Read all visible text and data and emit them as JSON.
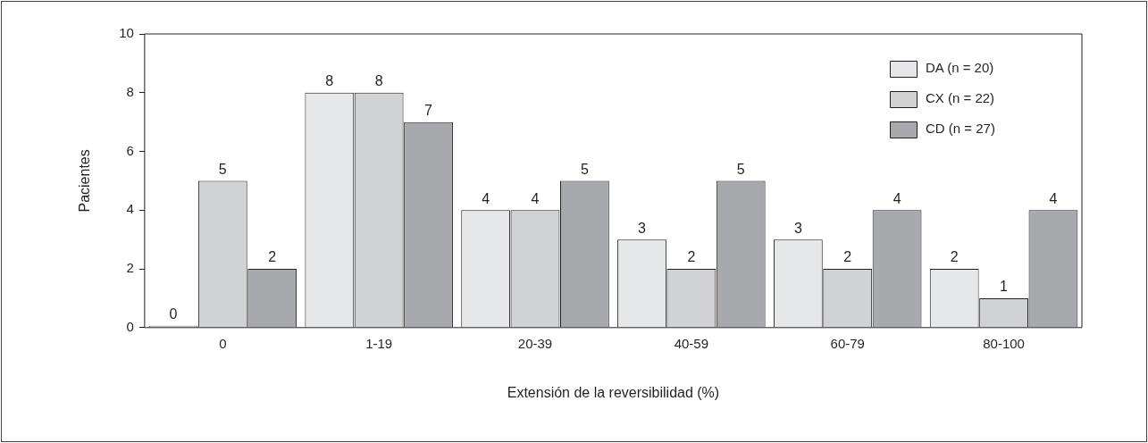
{
  "chart_data": {
    "type": "bar",
    "xlabel": "Extensión de la reversibilidad (%)",
    "ylabel": "Pacientes",
    "categories": [
      "0",
      "1-19",
      "20-39",
      "40-59",
      "60-79",
      "80-100"
    ],
    "series": [
      {
        "name": "DA (n = 20)",
        "color": "#e6e7e8",
        "values": [
          0,
          8,
          4,
          3,
          3,
          2
        ]
      },
      {
        "name": "CX (n = 22)",
        "color": "#d1d2d4",
        "values": [
          5,
          8,
          4,
          2,
          2,
          1
        ]
      },
      {
        "name": "CD (n = 27)",
        "color": "#a7a9ac",
        "values": [
          2,
          7,
          5,
          5,
          4,
          4
        ]
      }
    ],
    "ylim": [
      0,
      10
    ],
    "yticks": [
      0,
      2,
      4,
      6,
      8,
      10
    ],
    "grid": false,
    "legend": "top right",
    "data_labels": true
  }
}
